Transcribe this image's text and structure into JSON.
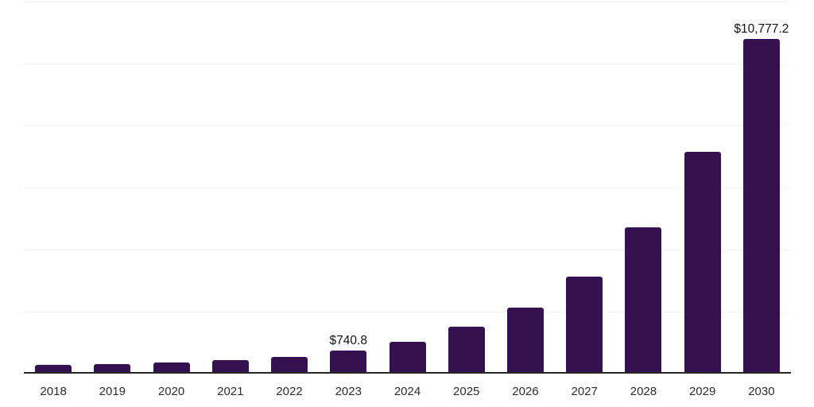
{
  "chart_data": {
    "type": "bar",
    "title": "",
    "xlabel": "",
    "ylabel": "",
    "categories": [
      "2018",
      "2019",
      "2020",
      "2021",
      "2022",
      "2023",
      "2024",
      "2025",
      "2026",
      "2027",
      "2028",
      "2029",
      "2030"
    ],
    "values": [
      265,
      300,
      350,
      430,
      520,
      740.8,
      1005,
      1500,
      2115,
      3120,
      4700,
      7135,
      10777.2
    ],
    "data_labels": [
      "",
      "",
      "",
      "",
      "",
      "$740.8",
      "",
      "",
      "",
      "",
      "",
      "",
      "$10,777.2"
    ],
    "ylim": [
      0,
      12000
    ],
    "gridline_interval": 2000,
    "grid": "horizontal",
    "y_tick_labels_visible": false,
    "legend": "none"
  },
  "style": {
    "bar_color": "#351150",
    "gridline_color": "#f2f2f2",
    "axis_line_color": "#262626",
    "tick_label_color": "#2b2b2b",
    "data_label_color": "#111111",
    "background_color": "#ffffff"
  }
}
